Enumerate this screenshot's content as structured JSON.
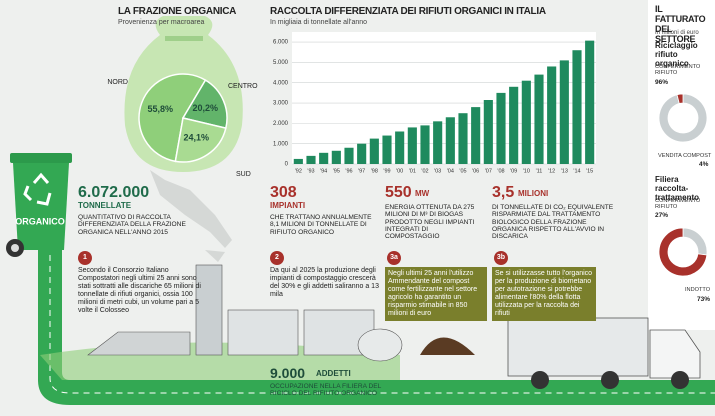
{
  "chart_data": [
    {
      "type": "bar",
      "title": "RACCOLTA DIFFERENZIATA DEI RIFIUTI ORGANICI IN ITALIA",
      "subtitle": "In migliaia di tonnellate all'anno",
      "categories": [
        "'92",
        "'93",
        "'94",
        "'95",
        "'96",
        "'97",
        "'98",
        "'99",
        "'00",
        "'01",
        "'02",
        "'03",
        "'04",
        "'05",
        "'06",
        "'07",
        "'08",
        "'09",
        "'10",
        "'11",
        "'12",
        "'13",
        "'14",
        "'15"
      ],
      "values": [
        250,
        400,
        550,
        650,
        800,
        1000,
        1250,
        1400,
        1600,
        1800,
        1900,
        2100,
        2300,
        2500,
        2800,
        3150,
        3500,
        3800,
        4100,
        4400,
        4800,
        5100,
        5600,
        6072
      ],
      "color": "#1f8a5e",
      "ylim": [
        0,
        6300
      ],
      "yticks": [
        0,
        {
          "value": 1000,
          "label": "1.000"
        },
        {
          "value": 2000,
          "label": "2.000"
        },
        {
          "value": 3000,
          "label": "3.000"
        },
        {
          "value": 4000,
          "label": "4.000"
        },
        {
          "value": 5000,
          "label": "5.000"
        },
        {
          "value": 6000,
          "label": "6.000"
        }
      ],
      "grid": true
    },
    {
      "type": "pie",
      "title": "LA FRAZIONE ORGANICA",
      "subtitle": "Provenienza per macroarea",
      "categories": [
        "NORD",
        "CENTRO",
        "SUD"
      ],
      "values": [
        55.8,
        20.2,
        24.1
      ],
      "value_labels": [
        "55,8%",
        "20,2%",
        "24,1%"
      ],
      "colors": [
        "#8fcf7a",
        "#62b46a",
        "#a9db92"
      ]
    },
    {
      "type": "donut",
      "title": "Riciclaggio rifiuto organico",
      "categories": [
        "CONFERIMENTO RIFIUTO",
        "VENDITA COMPOST"
      ],
      "values": [
        96,
        4
      ],
      "value_labels": [
        "96%",
        "4%"
      ],
      "colors": [
        "#c9cfd1",
        "#a8312b"
      ]
    },
    {
      "type": "donut",
      "title": "Filiera raccolta-trattamento",
      "categories": [
        "CONFERIMENTO RIFIUTO",
        "INDOTTO"
      ],
      "values": [
        27,
        73
      ],
      "value_labels": [
        "27%",
        "73%"
      ],
      "colors": [
        "#c9cfd1",
        "#a8312b"
      ]
    }
  ],
  "sidebar": {
    "title": "IL FATTURATO DEL SETTORE",
    "subtitle": "In milioni di euro"
  },
  "bin_label": "ORGANICO",
  "stats": [
    {
      "value": "6.072.000",
      "unit": "TONNELLATE",
      "text": "QUANTITATIVO DI RACCOLTA DIFFERENZIATA DELLA FRAZIONE ORGANICA NELL'ANNO 2015"
    },
    {
      "value": "308",
      "unit": "IMPIANTI",
      "text": "CHE TRATTANO ANNUALMENTE 8,1 MILIONI DI TONNELLATE DI RIFIUTO ORGANICO"
    },
    {
      "value": "550",
      "unit": "MW",
      "text": "ENERGIA OTTENUTA DA 275 MILIONI DI M³ DI BIOGAS PRODOTTO NEGLI IMPIANTI INTEGRATI DI COMPOSTAGGIO"
    },
    {
      "value": "3,5",
      "unit": "MILIONI",
      "text": "DI TONNELLATE DI CO₂ EQUIVALENTE RISPARMIATE DAL TRATTAMENTO BIOLOGICO DELLA FRAZIONE ORGANICA RISPETTO ALL'AVVIO IN DISCARICA"
    }
  ],
  "notes": [
    {
      "number": "1",
      "text": "Secondo il Consorzio Italiano Compostatori negli ultimi 25 anni sono stati sottratti alle discariche 65 milioni di tonnellate di rifiuti organici, ossia 100 milioni di metri cubi, un volume pari a 5 volte il Colosseo"
    },
    {
      "number": "2",
      "text": "Da qui al 2025 la produzione degli impianti di compostaggio crescerà del 30% e gli addetti saliranno a 13 mila"
    },
    {
      "number": "3a",
      "text": "Negli ultimi 25 anni l'utilizzo Ammendante del compost come fertilizzante nel settore agricolo ha garantito un risparmio stimabile in 850 milioni di euro"
    },
    {
      "number": "3b",
      "text": "Se si utilizzasse tutto l'organico per la produzione di biometano per autotrazione si potrebbe alimentare l'80% della flotta utilizzata per la raccolta dei rifiuti"
    }
  ],
  "employees": {
    "value": "9.000",
    "unit": "ADDETTI",
    "text": "OCCUPAZIONE NELLA FILIERA DEL RICICLO DEL RIFIUTO ORGANICO"
  }
}
